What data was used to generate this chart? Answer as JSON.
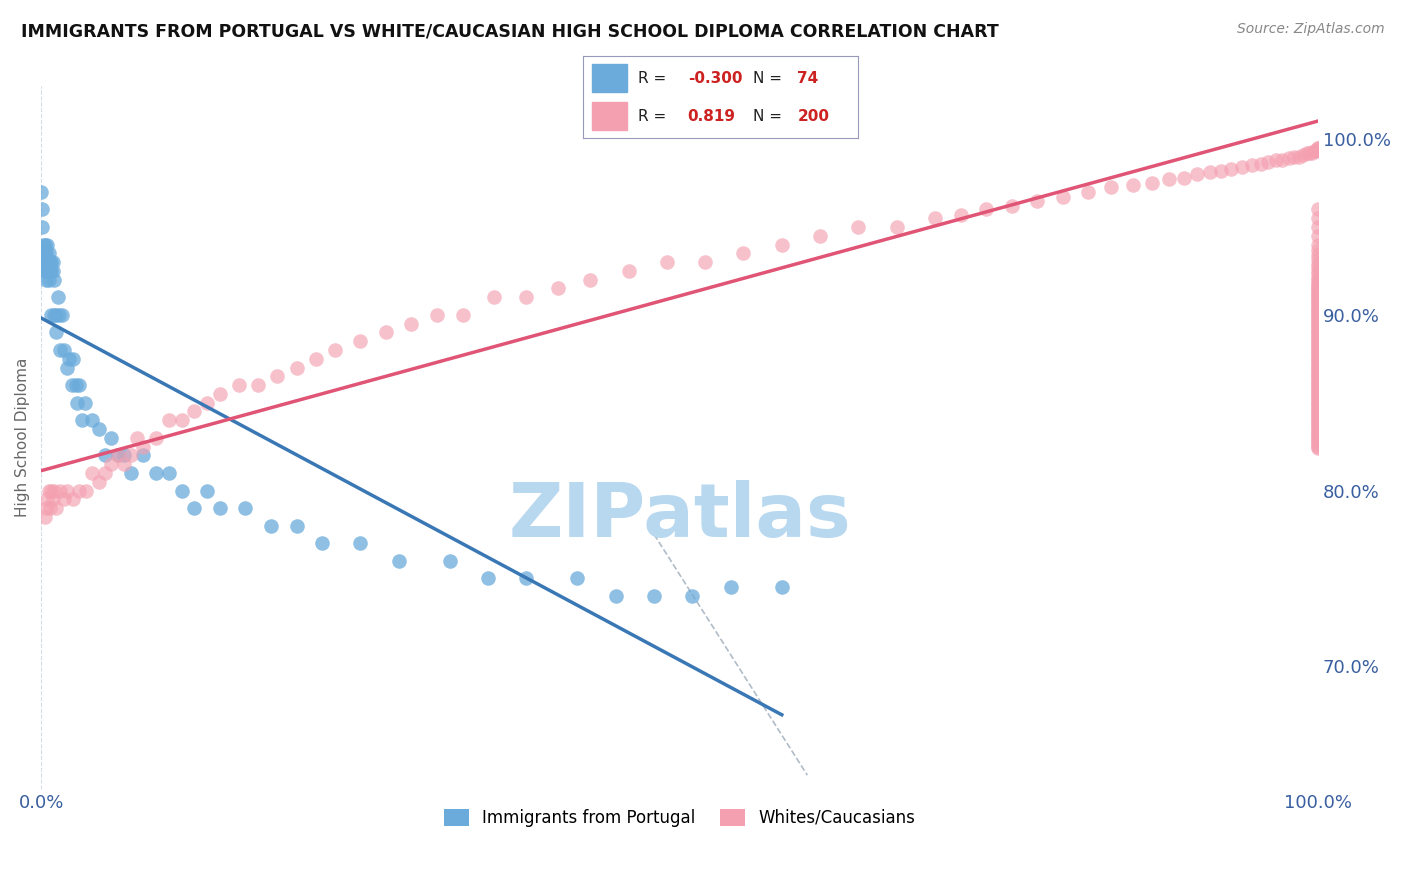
{
  "title": "IMMIGRANTS FROM PORTUGAL VS WHITE/CAUCASIAN HIGH SCHOOL DIPLOMA CORRELATION CHART",
  "source": "Source: ZipAtlas.com",
  "ylabel": "High School Diploma",
  "right_ytick_labels": [
    "70.0%",
    "80.0%",
    "90.0%",
    "100.0%"
  ],
  "right_ytick_values": [
    0.7,
    0.8,
    0.9,
    1.0
  ],
  "xlim": [
    0.0,
    1.0
  ],
  "ylim": [
    0.63,
    1.03
  ],
  "blue_color": "#6aabdb",
  "pink_color": "#f4a0b0",
  "trend_blue": "#3a78b5",
  "trend_pink": "#e05575",
  "watermark": "ZIPatlas",
  "watermark_color": "#b8d8f0",
  "background_color": "#ffffff",
  "grid_color": "#d0d8e8",
  "blue_points_x": [
    0.0,
    0.001,
    0.001,
    0.002,
    0.002,
    0.002,
    0.003,
    0.003,
    0.003,
    0.003,
    0.004,
    0.004,
    0.004,
    0.004,
    0.005,
    0.005,
    0.005,
    0.006,
    0.006,
    0.006,
    0.007,
    0.007,
    0.008,
    0.008,
    0.008,
    0.009,
    0.009,
    0.01,
    0.01,
    0.012,
    0.012,
    0.013,
    0.014,
    0.015,
    0.016,
    0.018,
    0.02,
    0.022,
    0.024,
    0.025,
    0.027,
    0.028,
    0.03,
    0.032,
    0.034,
    0.04,
    0.045,
    0.05,
    0.055,
    0.06,
    0.065,
    0.07,
    0.08,
    0.09,
    0.1,
    0.11,
    0.12,
    0.13,
    0.14,
    0.16,
    0.18,
    0.2,
    0.22,
    0.25,
    0.28,
    0.32,
    0.35,
    0.38,
    0.42,
    0.45,
    0.48,
    0.51,
    0.54,
    0.58
  ],
  "blue_points_y": [
    0.97,
    0.96,
    0.95,
    0.935,
    0.94,
    0.93,
    0.94,
    0.935,
    0.93,
    0.925,
    0.935,
    0.93,
    0.925,
    0.92,
    0.94,
    0.93,
    0.925,
    0.935,
    0.93,
    0.92,
    0.93,
    0.925,
    0.93,
    0.925,
    0.9,
    0.93,
    0.925,
    0.92,
    0.9,
    0.9,
    0.89,
    0.91,
    0.9,
    0.88,
    0.9,
    0.88,
    0.87,
    0.875,
    0.86,
    0.875,
    0.86,
    0.85,
    0.86,
    0.84,
    0.85,
    0.84,
    0.835,
    0.82,
    0.83,
    0.82,
    0.82,
    0.81,
    0.82,
    0.81,
    0.81,
    0.8,
    0.79,
    0.8,
    0.79,
    0.79,
    0.78,
    0.78,
    0.77,
    0.77,
    0.76,
    0.76,
    0.75,
    0.75,
    0.75,
    0.74,
    0.74,
    0.74,
    0.745,
    0.745
  ],
  "pink_points_x": [
    0.003,
    0.004,
    0.005,
    0.006,
    0.007,
    0.008,
    0.009,
    0.01,
    0.012,
    0.015,
    0.018,
    0.02,
    0.025,
    0.03,
    0.035,
    0.04,
    0.045,
    0.05,
    0.055,
    0.06,
    0.065,
    0.07,
    0.075,
    0.08,
    0.09,
    0.1,
    0.11,
    0.12,
    0.13,
    0.14,
    0.155,
    0.17,
    0.185,
    0.2,
    0.215,
    0.23,
    0.25,
    0.27,
    0.29,
    0.31,
    0.33,
    0.355,
    0.38,
    0.405,
    0.43,
    0.46,
    0.49,
    0.52,
    0.55,
    0.58,
    0.61,
    0.64,
    0.67,
    0.7,
    0.72,
    0.74,
    0.76,
    0.78,
    0.8,
    0.82,
    0.838,
    0.855,
    0.87,
    0.883,
    0.895,
    0.905,
    0.915,
    0.924,
    0.932,
    0.94,
    0.948,
    0.955,
    0.961,
    0.967,
    0.972,
    0.977,
    0.981,
    0.985,
    0.988,
    0.991,
    0.993,
    0.995,
    0.997,
    0.998,
    0.999,
    0.9993,
    0.9996,
    0.9998,
    0.9999,
    1.0,
    1.0,
    1.0,
    1.0,
    1.0,
    1.0,
    1.0,
    1.0,
    1.0,
    1.0,
    1.0,
    1.0,
    1.0,
    1.0,
    1.0,
    1.0,
    1.0,
    1.0,
    1.0,
    1.0,
    1.0,
    1.0,
    1.0,
    1.0,
    1.0,
    1.0,
    1.0,
    1.0,
    1.0,
    1.0,
    1.0,
    1.0,
    1.0,
    1.0,
    1.0,
    1.0,
    1.0,
    1.0,
    1.0,
    1.0,
    1.0,
    1.0,
    1.0,
    1.0,
    1.0,
    1.0,
    1.0,
    1.0,
    1.0,
    1.0,
    1.0,
    1.0,
    1.0,
    1.0,
    1.0,
    1.0,
    1.0,
    1.0,
    1.0,
    1.0,
    1.0,
    1.0,
    1.0,
    1.0,
    1.0,
    1.0,
    1.0,
    1.0,
    1.0,
    1.0,
    1.0,
    1.0,
    1.0,
    1.0,
    1.0,
    1.0,
    1.0,
    1.0,
    1.0,
    1.0,
    1.0,
    1.0,
    1.0,
    1.0,
    1.0,
    1.0,
    1.0,
    1.0,
    1.0,
    1.0,
    1.0,
    1.0,
    1.0,
    1.0,
    1.0,
    1.0,
    1.0,
    1.0,
    1.0,
    1.0,
    1.0,
    1.0,
    1.0,
    1.0,
    1.0,
    1.0,
    1.0,
    1.0,
    1.0,
    1.0
  ],
  "pink_points_y": [
    0.785,
    0.79,
    0.795,
    0.8,
    0.79,
    0.8,
    0.795,
    0.8,
    0.79,
    0.8,
    0.795,
    0.8,
    0.795,
    0.8,
    0.8,
    0.81,
    0.805,
    0.81,
    0.815,
    0.82,
    0.815,
    0.82,
    0.83,
    0.825,
    0.83,
    0.84,
    0.84,
    0.845,
    0.85,
    0.855,
    0.86,
    0.86,
    0.865,
    0.87,
    0.875,
    0.88,
    0.885,
    0.89,
    0.895,
    0.9,
    0.9,
    0.91,
    0.91,
    0.915,
    0.92,
    0.925,
    0.93,
    0.93,
    0.935,
    0.94,
    0.945,
    0.95,
    0.95,
    0.955,
    0.957,
    0.96,
    0.962,
    0.965,
    0.967,
    0.97,
    0.973,
    0.974,
    0.975,
    0.977,
    0.978,
    0.98,
    0.981,
    0.982,
    0.983,
    0.984,
    0.985,
    0.986,
    0.987,
    0.988,
    0.988,
    0.989,
    0.99,
    0.99,
    0.991,
    0.992,
    0.992,
    0.992,
    0.993,
    0.993,
    0.994,
    0.994,
    0.994,
    0.994,
    0.995,
    0.995,
    0.96,
    0.955,
    0.95,
    0.945,
    0.94,
    0.937,
    0.934,
    0.932,
    0.929,
    0.927,
    0.925,
    0.923,
    0.921,
    0.92,
    0.918,
    0.917,
    0.916,
    0.915,
    0.914,
    0.913,
    0.912,
    0.911,
    0.91,
    0.909,
    0.908,
    0.907,
    0.906,
    0.905,
    0.904,
    0.903,
    0.902,
    0.901,
    0.9,
    0.899,
    0.898,
    0.897,
    0.896,
    0.895,
    0.894,
    0.893,
    0.892,
    0.891,
    0.89,
    0.889,
    0.888,
    0.887,
    0.886,
    0.885,
    0.884,
    0.883,
    0.882,
    0.881,
    0.88,
    0.879,
    0.878,
    0.877,
    0.876,
    0.875,
    0.874,
    0.873,
    0.872,
    0.871,
    0.87,
    0.869,
    0.868,
    0.867,
    0.866,
    0.865,
    0.864,
    0.863,
    0.862,
    0.861,
    0.86,
    0.859,
    0.858,
    0.857,
    0.856,
    0.855,
    0.854,
    0.853,
    0.852,
    0.851,
    0.85,
    0.849,
    0.848,
    0.847,
    0.846,
    0.845,
    0.844,
    0.843,
    0.842,
    0.841,
    0.84,
    0.839,
    0.838,
    0.837,
    0.836,
    0.835,
    0.834,
    0.833,
    0.832,
    0.831,
    0.83,
    0.829,
    0.828,
    0.827,
    0.826,
    0.825,
    0.824,
    0.823
  ]
}
